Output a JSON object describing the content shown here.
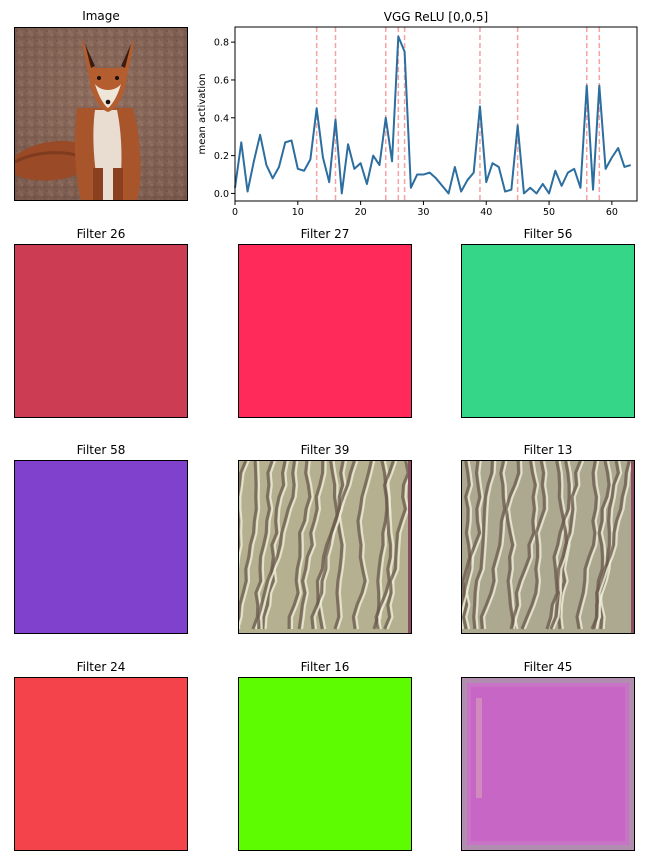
{
  "image_panel": {
    "title": "Image"
  },
  "chart_data": {
    "type": "line",
    "title": "VGG ReLU [0,0,5]",
    "xlabel": "",
    "ylabel": "mean activation",
    "xlim": [
      0,
      64
    ],
    "ylim": [
      -0.04,
      0.88
    ],
    "xticks": [
      0,
      10,
      20,
      30,
      40,
      50,
      60
    ],
    "yticks": [
      0.0,
      0.2,
      0.4,
      0.6,
      0.8
    ],
    "line_color": "#2c6e9f",
    "highlight_color": "#f4a2a2",
    "x": [
      0,
      1,
      2,
      3,
      4,
      5,
      6,
      7,
      8,
      9,
      10,
      11,
      12,
      13,
      14,
      15,
      16,
      17,
      18,
      19,
      20,
      21,
      22,
      23,
      24,
      25,
      26,
      27,
      28,
      29,
      30,
      31,
      32,
      33,
      34,
      35,
      36,
      37,
      38,
      39,
      40,
      41,
      42,
      43,
      44,
      45,
      46,
      47,
      48,
      49,
      50,
      51,
      52,
      53,
      54,
      55,
      56,
      57,
      58,
      59,
      60,
      61,
      62,
      63
    ],
    "y": [
      0.03,
      0.27,
      0.01,
      0.17,
      0.31,
      0.15,
      0.08,
      0.14,
      0.27,
      0.28,
      0.13,
      0.12,
      0.18,
      0.45,
      0.19,
      0.06,
      0.39,
      0.0,
      0.26,
      0.13,
      0.16,
      0.05,
      0.2,
      0.15,
      0.4,
      0.17,
      0.83,
      0.75,
      0.03,
      0.1,
      0.1,
      0.11,
      0.08,
      0.04,
      0.0,
      0.14,
      0.01,
      0.07,
      0.11,
      0.46,
      0.06,
      0.16,
      0.14,
      0.01,
      0.02,
      0.36,
      0.0,
      0.03,
      0.0,
      0.05,
      0.0,
      0.12,
      0.04,
      0.11,
      0.13,
      0.03,
      0.57,
      0.02,
      0.57,
      0.13,
      0.19,
      0.24,
      0.14,
      0.15
    ],
    "highlighted_filters": [
      13,
      16,
      24,
      26,
      27,
      39,
      45,
      56,
      58
    ],
    "grid": false
  },
  "filters": [
    {
      "title": "Filter 26",
      "color": "#cc3d53"
    },
    {
      "title": "Filter 27",
      "color": "#ff2a5a"
    },
    {
      "title": "Filter 56",
      "color": "#36d688"
    },
    {
      "title": "Filter 58",
      "color": "#8042cc"
    },
    {
      "title": "Filter 39",
      "color": "#b5b190",
      "texture": "ridges"
    },
    {
      "title": "Filter 13",
      "color": "#aca990",
      "texture": "ridges"
    },
    {
      "title": "Filter 24",
      "color": "#f5434c"
    },
    {
      "title": "Filter 16",
      "color": "#5efc00"
    },
    {
      "title": "Filter 45",
      "color": "#c866c6",
      "texture": "border"
    }
  ]
}
